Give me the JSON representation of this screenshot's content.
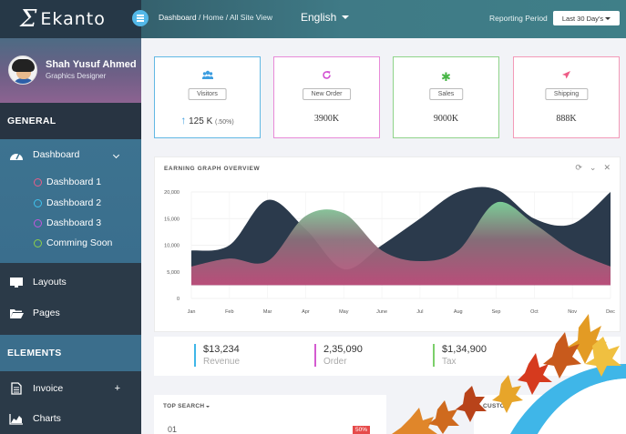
{
  "app": {
    "name": "Ekanto",
    "logo_mark": "Σ"
  },
  "header": {
    "breadcrumb": {
      "current": "Dashboard",
      "rest": " / Home / All Site View"
    },
    "language": "English",
    "period_label": "Reporting Period",
    "period_value": "Last 30 Day's"
  },
  "profile": {
    "name": "Shah Yusuf Ahmed",
    "role": "Graphics Designer"
  },
  "sidebar": {
    "general_title": "GENERAL",
    "dashboard": {
      "label": "Dashboard",
      "icon": "dashboard-gauge-icon"
    },
    "sub_items": [
      {
        "label": "Dashboard 1",
        "color": "#e85d8a"
      },
      {
        "label": "Dashboard 2",
        "color": "#3fc3ee"
      },
      {
        "label": "Dashboard 3",
        "color": "#c257dd"
      },
      {
        "label": "Comming Soon",
        "color": "#8bd04a"
      }
    ],
    "layouts": "Layouts",
    "pages": "Pages",
    "elements_title": "ELEMENTS",
    "invoice": "Invoice",
    "invoice_expand": "+",
    "charts": "Charts"
  },
  "stats": [
    {
      "label": "Visitors",
      "value": "125 K",
      "sub": "(.50%)",
      "color": "#62b8e4",
      "icon": "users-icon"
    },
    {
      "label": "New Order",
      "value": "3900K",
      "color": "#e88ad8",
      "icon": "refresh-icon"
    },
    {
      "label": "Sales",
      "value": "9000K",
      "color": "#8fd38a",
      "icon": "asterisk-icon"
    },
    {
      "label": "Shipping",
      "value": "888K",
      "color": "#f39ab8",
      "icon": "plane-icon"
    }
  ],
  "chart_card": {
    "title": "EARNING GRAPH OVERVIEW"
  },
  "chart_data": {
    "type": "area",
    "title": "EARNING GRAPH OVERVIEW",
    "categories": [
      "Jan",
      "Feb",
      "Mar",
      "Apr",
      "May",
      "June",
      "Jul",
      "Aug",
      "Sep",
      "Oct",
      "Nov",
      "Dec"
    ],
    "series": [
      {
        "values": [
          9000,
          10000,
          18500,
          13000,
          5500,
          10000,
          15000,
          20000,
          20500,
          15000,
          14000,
          20000
        ],
        "color": "#2b3a4c"
      },
      {
        "values": [
          6000,
          7500,
          7000,
          15500,
          16000,
          9000,
          7000,
          9000,
          18000,
          14000,
          9000,
          6000
        ],
        "color": "gradient-green-pink"
      }
    ],
    "y_ticks": [
      0,
      5000,
      10000,
      15000,
      20000
    ],
    "ylim": [
      0,
      20000
    ],
    "grid": true
  },
  "totals": [
    {
      "value": "$13,234",
      "label": "Revenue",
      "color": "#3fb6e8"
    },
    {
      "value": "2,35,090",
      "label": "Order",
      "color": "#d45bd0"
    },
    {
      "value": "$1,34,900",
      "label": "Tax",
      "color": "#7ccf6a"
    }
  ],
  "top_search": {
    "title": "TOP SEARCH",
    "row_number": "01",
    "badge": "50%"
  },
  "custom": {
    "title": "CUSTOM"
  }
}
